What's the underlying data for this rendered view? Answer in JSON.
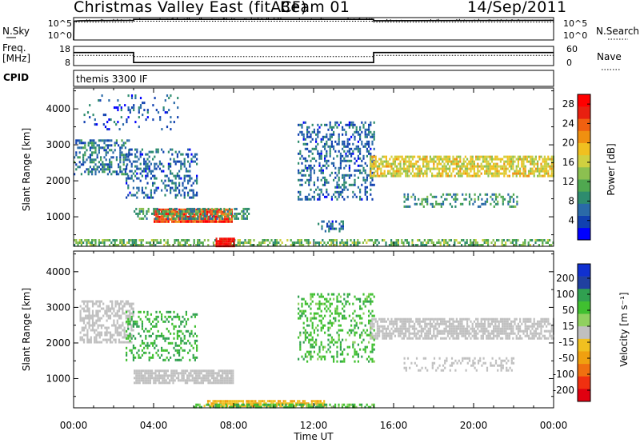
{
  "header": {
    "title": "Christmas Valley East (fitACF)",
    "beam": "Beam 01",
    "date": "14/Sep/2011"
  },
  "params": {
    "nsky_label": "N.Sky",
    "nsky_ticks": [
      "10^5",
      "10^0"
    ],
    "nsearch_label": "N.Search",
    "nsearch_ticks": [
      "10^5",
      "10^0"
    ],
    "freq_label": "Freq.",
    "freq_unit": "[MHz]",
    "freq_ticks": [
      "18",
      "8"
    ],
    "nave_label": "Nave",
    "nave_ticks": [
      "60",
      "0"
    ],
    "cpid_label": "CPID",
    "cpid_value": "themis 3300 IF"
  },
  "x_axis": {
    "label": "Time UT",
    "ticks": [
      "00:00",
      "04:00",
      "08:00",
      "12:00",
      "16:00",
      "20:00",
      "00:00"
    ]
  },
  "chart_data": [
    {
      "type": "line",
      "panel": "N.Sky / N.Search",
      "x_unit": "hours UT",
      "series": [
        {
          "name": "N.Sky",
          "style": "solid",
          "x": [
            0,
            0.02,
            0.3,
            3.0,
            3.0,
            15.0,
            15.0,
            24.0
          ],
          "y_log10": [
            0.0,
            4.2,
            4.3,
            4.4,
            4.6,
            4.6,
            4.3,
            4.4
          ]
        },
        {
          "name": "N.Search",
          "style": "dotted",
          "x": [
            0,
            0.02,
            3.0,
            3.0,
            15.0,
            15.0,
            24.0
          ],
          "y_log10": [
            0.0,
            4.0,
            4.0,
            4.2,
            4.2,
            4.0,
            4.0
          ]
        }
      ],
      "ylim_log10": [
        0,
        5
      ]
    },
    {
      "type": "line",
      "panel": "Freq / Nave",
      "x_unit": "hours UT",
      "series": [
        {
          "name": "Freq.",
          "unit": "MHz",
          "style": "solid",
          "x": [
            0,
            3.0,
            3.0,
            15.0,
            15.0,
            24.0
          ],
          "y": [
            14.8,
            14.8,
            9.6,
            9.6,
            14.8,
            14.8
          ]
        },
        {
          "name": "Nave",
          "style": "dotted",
          "x": [
            0,
            3.0,
            3.0,
            15.0,
            15.0,
            24.0
          ],
          "y": [
            32,
            32,
            28,
            28,
            32,
            32
          ]
        }
      ],
      "freq_ylim": [
        8,
        18
      ],
      "nave_ylim": [
        0,
        60
      ]
    },
    {
      "type": "heatmap",
      "panel": "Power",
      "xlabel": "Time UT",
      "ylabel": "Slant Range [km]",
      "xlim_hours": [
        0,
        24
      ],
      "ylim_km": [
        180,
        4580
      ],
      "yticks": [
        1000,
        2000,
        3000,
        4000
      ],
      "colorbar": {
        "label": "Power [dB]",
        "ticks": [
          4,
          8,
          12,
          16,
          20,
          24,
          28
        ],
        "range": [
          0,
          30
        ],
        "colors": [
          "#0000ff",
          "#1040b0",
          "#2a6aa8",
          "#2e8c6e",
          "#50a850",
          "#8cc050",
          "#d0d040",
          "#f0c020",
          "#f09010",
          "#f06010",
          "#e82010",
          "#ff0000"
        ]
      },
      "regions": [
        {
          "name": "ground_scatter_band",
          "t": [
            0.0,
            24.0
          ],
          "r": [
            230,
            380
          ],
          "value": 12,
          "density": 0.55
        },
        {
          "name": "near_range_strong",
          "t": [
            7.1,
            8.0
          ],
          "r": [
            200,
            420
          ],
          "value": 29,
          "density": 0.95
        },
        {
          "name": "arc_early",
          "t": [
            0.0,
            2.8
          ],
          "r": [
            2150,
            3150
          ],
          "value": 7,
          "density": 0.45
        },
        {
          "name": "strong_patch_1000km",
          "t": [
            4.0,
            7.9
          ],
          "r": [
            880,
            1230
          ],
          "value": 25,
          "density": 0.9
        },
        {
          "name": "band_1100km_edges",
          "t": [
            3.0,
            8.8
          ],
          "r": [
            980,
            1250
          ],
          "value": 10,
          "density": 0.5
        },
        {
          "name": "diagonal_streaks",
          "t": [
            2.6,
            6.2
          ],
          "r": [
            1500,
            2900
          ],
          "value": 6,
          "density": 0.35
        },
        {
          "name": "sparse_high",
          "t": [
            0.5,
            5.2
          ],
          "r": [
            3400,
            4400
          ],
          "value": 5,
          "density": 0.12
        },
        {
          "name": "descending_arc",
          "t": [
            11.2,
            15.0
          ],
          "r": [
            1500,
            3650
          ],
          "value": 6,
          "density": 0.35
        },
        {
          "name": "band_2500km",
          "t": [
            14.8,
            24.0
          ],
          "r": [
            2150,
            2700
          ],
          "value": 17,
          "density": 0.7
        },
        {
          "name": "band_1400km",
          "t": [
            16.5,
            22.2
          ],
          "r": [
            1250,
            1650
          ],
          "value": 9,
          "density": 0.35
        },
        {
          "name": "low_cluster_13h",
          "t": [
            12.2,
            13.5
          ],
          "r": [
            600,
            900
          ],
          "value": 6,
          "density": 0.4
        }
      ]
    },
    {
      "type": "heatmap",
      "panel": "Velocity",
      "xlabel": "Time UT",
      "ylabel": "Slant Range [km]",
      "xlim_hours": [
        0,
        24
      ],
      "ylim_km": [
        180,
        4580
      ],
      "yticks": [
        1000,
        2000,
        3000,
        4000
      ],
      "colorbar": {
        "label": "Velocity [m s⁻¹]",
        "ticks": [
          "200",
          "100",
          "50",
          "15",
          "-15",
          "-50",
          "-100",
          "-200"
        ],
        "colors": [
          "#1030d0",
          "#2040a0",
          "#30a050",
          "#40c030",
          "#90d060",
          "#c0c0c0",
          "#f0c020",
          "#f0a010",
          "#f07010",
          "#f03010",
          "#e00010"
        ]
      },
      "ground_scatter_color": "#c0c0c0",
      "regions": [
        {
          "name": "near_range_orange",
          "t": [
            6.5,
            12.5
          ],
          "r": [
            200,
            400
          ],
          "value": -45,
          "density": 0.8
        },
        {
          "name": "near_range_green",
          "t": [
            6.0,
            15.0
          ],
          "r": [
            200,
            300
          ],
          "value": 30,
          "density": 0.6
        },
        {
          "name": "gs_band_1100",
          "t": [
            3.0,
            8.0
          ],
          "r": [
            900,
            1250
          ],
          "value": 0,
          "density": 0.85
        },
        {
          "name": "gs_early_arc",
          "t": [
            0.3,
            3.0
          ],
          "r": [
            2000,
            3200
          ],
          "value": 0,
          "density": 0.5
        },
        {
          "name": "gs_2500_band",
          "t": [
            14.8,
            24.0
          ],
          "r": [
            2150,
            2700
          ],
          "value": 0,
          "density": 0.7
        },
        {
          "name": "scatter_diag",
          "t": [
            2.6,
            6.2
          ],
          "r": [
            1500,
            2900
          ],
          "value": 40,
          "density": 0.25
        },
        {
          "name": "arc_green",
          "t": [
            11.2,
            15.0
          ],
          "r": [
            1500,
            3400
          ],
          "value": 30,
          "density": 0.3
        },
        {
          "name": "gs_1400",
          "t": [
            16.5,
            22.0
          ],
          "r": [
            1250,
            1600
          ],
          "value": 0,
          "density": 0.3
        }
      ]
    }
  ]
}
